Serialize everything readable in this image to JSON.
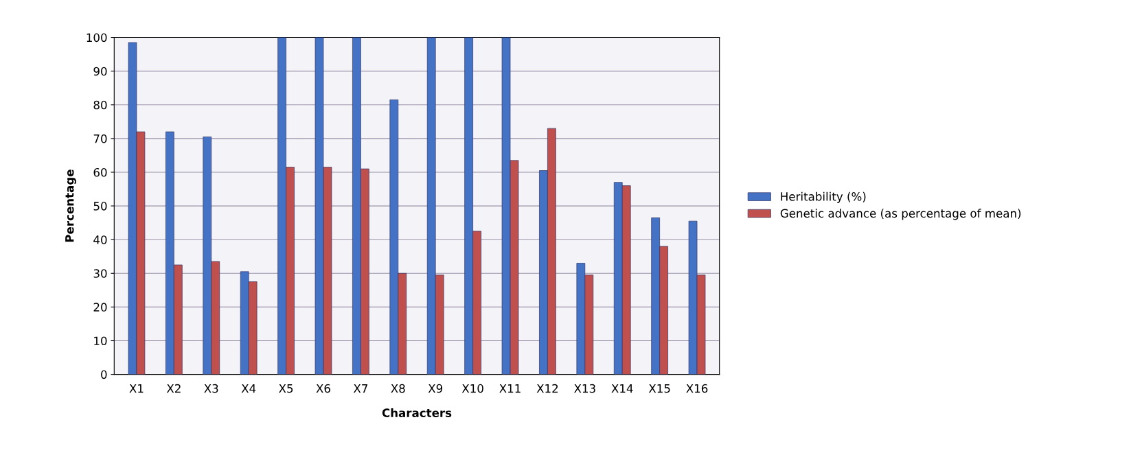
{
  "chart_data": {
    "type": "bar",
    "xlabel": "Characters",
    "ylabel": "Percentage",
    "categories": [
      "X1",
      "X2",
      "X3",
      "X4",
      "X5",
      "X6",
      "X7",
      "X8",
      "X9",
      "X10",
      "X11",
      "X12",
      "X13",
      "X14",
      "X15",
      "X16"
    ],
    "series": [
      {
        "name": "Heritability (%)",
        "color": "#4472c4",
        "values": [
          98.5,
          72,
          70.5,
          30.5,
          100,
          100,
          100,
          81.5,
          100,
          100,
          100,
          60.5,
          33,
          57,
          46.5,
          45.5
        ]
      },
      {
        "name": "Genetic advance (as percentage of mean)",
        "color": "#c0504d",
        "values": [
          72,
          32.5,
          33.5,
          27.5,
          61.5,
          61.5,
          61,
          30,
          29.5,
          42.5,
          63.5,
          73,
          29.5,
          56,
          38,
          29.5
        ]
      }
    ],
    "ylim": [
      0,
      100
    ],
    "yticks": [
      0,
      10,
      20,
      30,
      40,
      50,
      60,
      70,
      80,
      90,
      100
    ],
    "grid": "y",
    "legend": "right"
  }
}
